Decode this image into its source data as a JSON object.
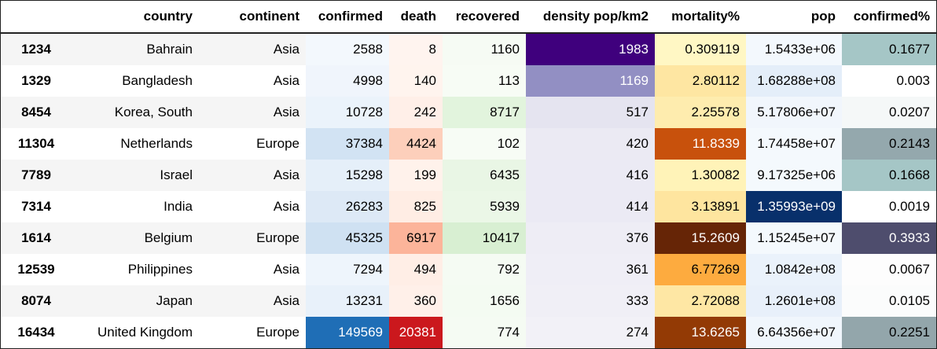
{
  "table": {
    "columns": [
      "",
      "country",
      "continent",
      "confirmed",
      "death",
      "recovered",
      "density pop/km2",
      "mortality%",
      "pop",
      "confirmed%"
    ],
    "rows": [
      {
        "index": "1234",
        "country": "Bahrain",
        "continent": "Asia",
        "confirmed": "2588",
        "death": "8",
        "recovered": "1160",
        "density": "1983",
        "mortality": "0.309119",
        "pop": "1.5433e+06",
        "confirmed_pct": "0.1677",
        "colors": {
          "confirmed": "#f3f8fd",
          "death": "#fff4ef",
          "recovered": "#f6fbf4",
          "density": "#3f007d",
          "mortality": "#fff7c4",
          "pop": "#f3f8fd",
          "confirmed_pct": "#a5c6c6"
        },
        "light": [
          "density"
        ]
      },
      {
        "index": "1329",
        "country": "Bangladesh",
        "continent": "Asia",
        "confirmed": "4998",
        "death": "140",
        "recovered": "113",
        "density": "1169",
        "mortality": "2.80112",
        "pop": "1.68288e+08",
        "confirmed_pct": "0.003",
        "colors": {
          "confirmed": "#f0f5fc",
          "death": "#fff4ee",
          "recovered": "#f7fcf5",
          "density": "#928fc3",
          "mortality": "#fee6a2",
          "pop": "#e4eef9",
          "confirmed_pct": "#ffffff"
        },
        "light": [
          "density"
        ]
      },
      {
        "index": "8454",
        "country": "Korea, South",
        "continent": "Asia",
        "confirmed": "10728",
        "death": "242",
        "recovered": "8717",
        "density": "517",
        "mortality": "2.25578",
        "pop": "5.17806e+07",
        "confirmed_pct": "0.0207",
        "colors": {
          "confirmed": "#ebf3fb",
          "death": "#ffefe8",
          "recovered": "#e2f4dd",
          "density": "#e5e4f0",
          "mortality": "#feecae",
          "pop": "#f1f6fc",
          "confirmed_pct": "#f5f8f8"
        },
        "light": []
      },
      {
        "index": "11304",
        "country": "Netherlands",
        "continent": "Europe",
        "confirmed": "37384",
        "death": "4424",
        "recovered": "102",
        "density": "420",
        "mortality": "11.8339",
        "pop": "1.74458e+07",
        "confirmed_pct": "0.2143",
        "colors": {
          "confirmed": "#d2e3f3",
          "death": "#fdcfbb",
          "recovered": "#f7fcf5",
          "density": "#ebeaf3",
          "mortality": "#c8510c",
          "pop": "#f4f9fd",
          "confirmed_pct": "#94a8ad"
        },
        "light": [
          "mortality"
        ]
      },
      {
        "index": "7789",
        "country": "Israel",
        "continent": "Asia",
        "confirmed": "15298",
        "death": "199",
        "recovered": "6435",
        "density": "416",
        "mortality": "1.30082",
        "pop": "9.17325e+06",
        "confirmed_pct": "0.1668",
        "colors": {
          "confirmed": "#e5eff9",
          "death": "#fff2eb",
          "recovered": "#e9f6e5",
          "density": "#ebeaf4",
          "mortality": "#fff3b8",
          "pop": "#f4f9fd",
          "confirmed_pct": "#a5c6c6"
        },
        "light": []
      },
      {
        "index": "7314",
        "country": "India",
        "continent": "Asia",
        "confirmed": "26283",
        "death": "825",
        "recovered": "5939",
        "density": "414",
        "mortality": "3.13891",
        "pop": "1.35993e+09",
        "confirmed_pct": "0.0019",
        "colors": {
          "confirmed": "#dde9f6",
          "death": "#ffede4",
          "recovered": "#ebf7e7",
          "density": "#ebeaf4",
          "mortality": "#fee59f",
          "pop": "#08306b",
          "confirmed_pct": "#ffffff"
        },
        "light": [
          "pop"
        ]
      },
      {
        "index": "1614",
        "country": "Belgium",
        "continent": "Europe",
        "confirmed": "45325",
        "death": "6917",
        "recovered": "10417",
        "density": "376",
        "mortality": "15.2609",
        "pop": "1.15245e+07",
        "confirmed_pct": "0.3933",
        "colors": {
          "confirmed": "#cfe1f2",
          "death": "#fcb49a",
          "recovered": "#d8efd2",
          "density": "#eeedf5",
          "mortality": "#662506",
          "pop": "#f4f9fd",
          "confirmed_pct": "#4e4d6d"
        },
        "light": [
          "mortality",
          "confirmed_pct"
        ]
      },
      {
        "index": "12539",
        "country": "Philippines",
        "continent": "Asia",
        "confirmed": "7294",
        "death": "494",
        "recovered": "792",
        "density": "361",
        "mortality": "6.77269",
        "pop": "1.0842e+08",
        "confirmed_pct": "0.0067",
        "colors": {
          "confirmed": "#eef5fc",
          "death": "#ffeee6",
          "recovered": "#f5fbf3",
          "density": "#efeef6",
          "mortality": "#fdab3f",
          "pop": "#eaf2fb",
          "confirmed_pct": "#fdfdfd"
        },
        "light": []
      },
      {
        "index": "8074",
        "country": "Japan",
        "continent": "Asia",
        "confirmed": "13231",
        "death": "360",
        "recovered": "1656",
        "density": "333",
        "mortality": "2.72088",
        "pop": "1.2601e+08",
        "confirmed_pct": "0.0105",
        "colors": {
          "confirmed": "#e8f1fa",
          "death": "#fff0e9",
          "recovered": "#f4fbf2",
          "density": "#f0eff6",
          "mortality": "#fee7a4",
          "pop": "#e8f0fa",
          "confirmed_pct": "#fbfcfc"
        },
        "light": []
      },
      {
        "index": "16434",
        "country": "United Kingdom",
        "continent": "Europe",
        "confirmed": "149569",
        "death": "20381",
        "recovered": "774",
        "density": "274",
        "mortality": "13.6265",
        "pop": "6.64356e+07",
        "confirmed_pct": "0.2251",
        "colors": {
          "confirmed": "#1f6eb6",
          "death": "#cb181d",
          "recovered": "#f5fbf3",
          "density": "#f2f1f7",
          "mortality": "#933a05",
          "pop": "#f0f6fc",
          "confirmed_pct": "#93a6ab"
        },
        "light": [
          "confirmed",
          "death",
          "mortality"
        ]
      }
    ]
  }
}
